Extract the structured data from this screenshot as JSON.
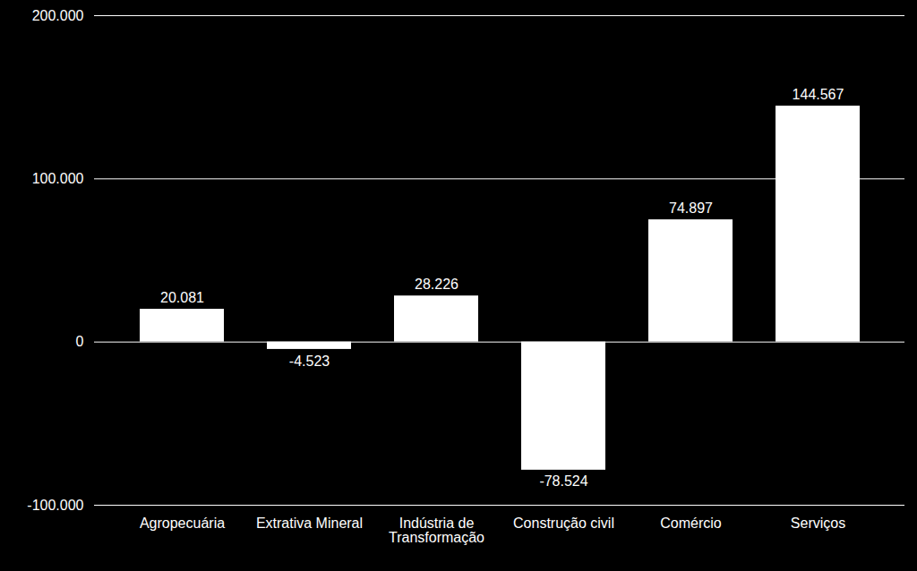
{
  "chart_data": {
    "type": "bar",
    "categories": [
      "Agropecuária",
      "Extrativa Mineral",
      "Indústria de Transformação",
      "Construção civil",
      "Comércio",
      "Serviços"
    ],
    "values": [
      20081,
      -4523,
      28226,
      -78524,
      74897,
      144567
    ],
    "value_labels": [
      "20.081",
      "-4.523",
      "28.226",
      "-78.524",
      "74.897",
      "144.567"
    ],
    "color": "#ffffff",
    "ylim": [
      -100000,
      200000
    ],
    "yticks": [
      {
        "value": -100000,
        "label": "-100.000"
      },
      0,
      {
        "value": 100000,
        "label": "100.000"
      },
      {
        "value": 200000,
        "label": "200.000"
      }
    ],
    "grid": true,
    "data_labels": true
  }
}
